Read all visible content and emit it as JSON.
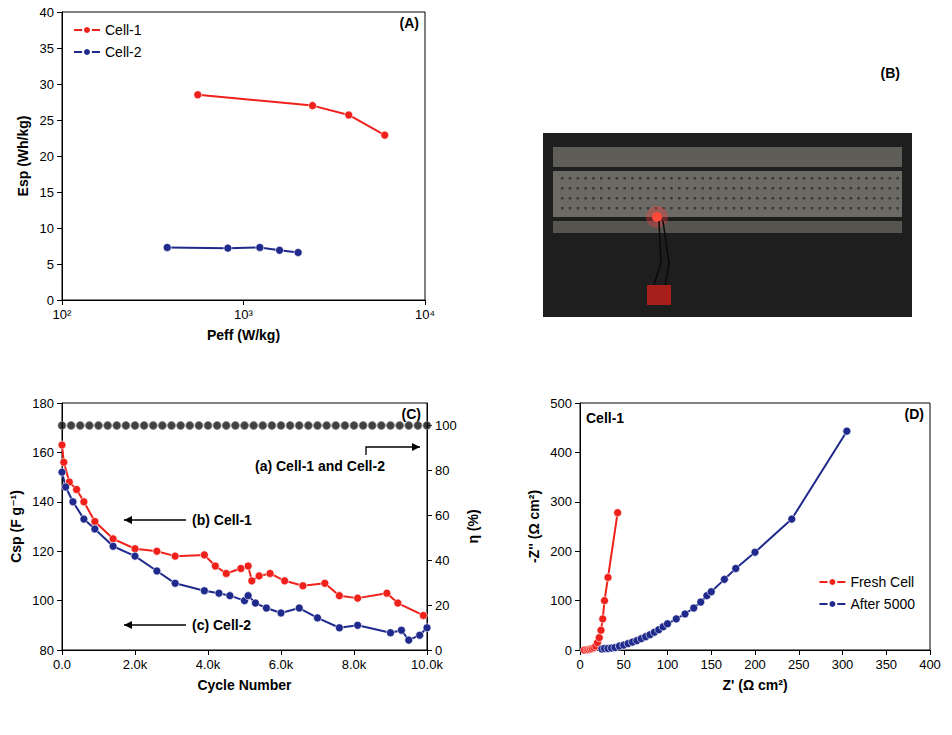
{
  "chart_data": [
    {
      "type": "line",
      "title": "(A)",
      "x_label": "Peff (W/kg)",
      "y_label": "Esp (Wh/kg)",
      "log": "x",
      "grid": false,
      "legend": "upper left",
      "marker": "circle",
      "xlim": [
        100,
        10000
      ],
      "xticks": [
        {
          "value": 100,
          "label": "10²"
        },
        {
          "value": 1000,
          "label": "10³"
        },
        {
          "value": 10000,
          "label": "10⁴"
        }
      ],
      "ylim": [
        0,
        40
      ],
      "yticks": [
        0,
        5,
        10,
        15,
        20,
        25,
        30,
        35,
        40
      ],
      "series": [
        {
          "name": "Cell-1",
          "color": "#f0201a",
          "x": [
            560,
            2400,
            3800,
            6000
          ],
          "values": [
            28.5,
            27,
            25.7,
            22.9
          ]
        },
        {
          "name": "Cell-2",
          "color": "#1f2a8c",
          "x": [
            380,
            820,
            1230,
            1580,
            2000
          ],
          "values": [
            7.3,
            7.2,
            7.3,
            6.9,
            6.6
          ]
        }
      ]
    },
    {
      "type": "photo",
      "title": "(B)"
    },
    {
      "type": "line",
      "title": "(C)",
      "x_label": "Cycle Number",
      "y_label": "Csp (F g⁻¹)",
      "y2_label": "η (%)",
      "grid": false,
      "marker": "circle",
      "annotations": [
        "(a) Cell-1 and Cell-2",
        "(b) Cell-1",
        "(c) Cell-2"
      ],
      "xlim": [
        0,
        10000
      ],
      "xticks": [
        {
          "value": 0,
          "label": "0.0"
        },
        {
          "value": 2000,
          "label": "2.0k"
        },
        {
          "value": 4000,
          "label": "4.0k"
        },
        {
          "value": 6000,
          "label": "6.0k"
        },
        {
          "value": 8000,
          "label": "8.0k"
        },
        {
          "value": 10000,
          "label": "10.0k"
        }
      ],
      "ylim": [
        80,
        180
      ],
      "yticks": [
        80,
        100,
        120,
        140,
        160,
        180
      ],
      "y2lim": [
        0,
        110
      ],
      "y2ticks": [
        0,
        20,
        40,
        60,
        80,
        100
      ],
      "series": [
        {
          "color": "#f0201a",
          "x": [
            0,
            50,
            200,
            400,
            600,
            900,
            1400,
            2000,
            2600,
            3100,
            3900,
            4200,
            4500,
            4900,
            5100,
            5200,
            5400,
            5700,
            6100,
            6600,
            7200,
            7600,
            8100,
            8900,
            9200,
            9900
          ],
          "values": [
            163,
            156,
            148,
            145,
            140,
            132,
            125,
            121,
            120,
            118,
            118.5,
            114,
            111,
            113,
            114,
            108,
            110,
            111,
            108,
            106,
            107,
            102,
            101,
            103,
            99,
            94
          ]
        },
        {
          "color": "#1f2a8c",
          "x": [
            0,
            100,
            300,
            600,
            900,
            1400,
            2000,
            2600,
            3100,
            3900,
            4300,
            4600,
            5000,
            5100,
            5300,
            5600,
            6000,
            6500,
            7000,
            7600,
            8100,
            9000,
            9300,
            9500,
            9800,
            10000
          ],
          "values": [
            152,
            146,
            140,
            133,
            129,
            122,
            118,
            112,
            107,
            104,
            103,
            102,
            100,
            102,
            99,
            97,
            95,
            97,
            93,
            89,
            90,
            87,
            88,
            84,
            86,
            89
          ]
        },
        {
          "color": "#111111",
          "axis": "y2",
          "marker": "circle",
          "line_style": "none",
          "x": [
            0,
            250,
            500,
            750,
            1000,
            1250,
            1500,
            1750,
            2000,
            2250,
            2500,
            2750,
            3000,
            3250,
            3500,
            3750,
            4000,
            4250,
            4500,
            4750,
            5000,
            5250,
            5500,
            5750,
            6000,
            6250,
            6500,
            6750,
            7000,
            7250,
            7500,
            7750,
            8000,
            8250,
            8500,
            8750,
            9000,
            9250,
            9500,
            9750,
            10000
          ],
          "values": [
            100,
            100,
            100,
            100,
            100,
            100,
            100,
            100,
            100,
            100,
            100,
            100,
            100,
            100,
            100,
            100,
            100,
            100,
            100,
            100,
            100,
            100,
            100,
            100,
            100,
            100,
            100,
            100,
            100,
            100,
            100,
            100,
            100,
            100,
            100,
            100,
            100,
            100,
            100,
            100,
            100
          ]
        }
      ]
    },
    {
      "type": "line",
      "title": "(D)",
      "x_label": "Z' (Ω cm²)",
      "y_label": "-Z'' (Ω cm²)",
      "grid": false,
      "legend": "lower right",
      "marker": "circle",
      "annotations": [
        "Cell-1"
      ],
      "xlim": [
        0,
        400
      ],
      "xticks": [
        0,
        50,
        100,
        150,
        200,
        250,
        300,
        350,
        400
      ],
      "ylim": [
        0,
        500
      ],
      "yticks": [
        0,
        100,
        200,
        300,
        400,
        500
      ],
      "series": [
        {
          "name": "Fresh Cell",
          "color": "#f0201a",
          "x": [
            5,
            8,
            10,
            12,
            14,
            16,
            18,
            20,
            22,
            24,
            26,
            28,
            32,
            43
          ],
          "values": [
            0,
            0.5,
            1,
            2,
            3,
            5,
            8,
            15,
            25,
            40,
            63,
            100,
            147,
            278
          ]
        },
        {
          "name": "After 5000",
          "color": "#1f2a8c",
          "x": [
            25,
            28,
            32,
            36,
            40,
            45,
            50,
            55,
            60,
            65,
            70,
            75,
            80,
            85,
            90,
            95,
            100,
            110,
            120,
            130,
            138,
            145,
            150,
            165,
            178,
            200,
            242,
            305
          ],
          "values": [
            2,
            3,
            3,
            4,
            5,
            8,
            10,
            13,
            16,
            19,
            23,
            27,
            31,
            36,
            41,
            47,
            53,
            63,
            73,
            85,
            97,
            110,
            118,
            143,
            165,
            198,
            265,
            443
          ]
        }
      ]
    }
  ]
}
